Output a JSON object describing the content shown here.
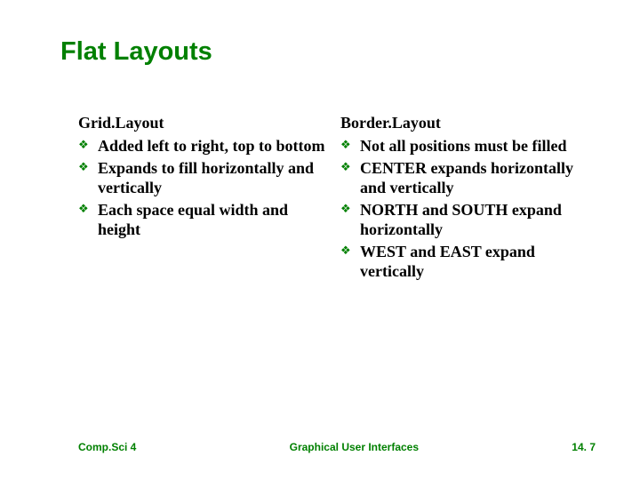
{
  "colors": {
    "title": "#008000",
    "body_text": "#000000",
    "footer_text": "#008000",
    "bullet_icon": "#008000",
    "background": "#ffffff"
  },
  "fonts": {
    "title_family": "Arial, Helvetica, sans-serif",
    "body_family": "Georgia, 'Times New Roman', serif",
    "title_size_pt": 22,
    "heading_size_pt": 14,
    "body_size_pt": 14,
    "footer_size_pt": 9
  },
  "title": "Flat Layouts",
  "left": {
    "heading": "Grid.Layout",
    "items": [
      "Added left to right, top to bottom",
      "Expands to fill horizontally and vertically",
      "Each space equal width and height"
    ]
  },
  "right": {
    "heading": "Border.Layout",
    "items": [
      "Not all positions must be filled",
      "CENTER expands horizontally and vertically",
      "NORTH and SOUTH expand horizontally",
      "WEST and EAST expand vertically"
    ]
  },
  "footer": {
    "left": "Comp.Sci 4",
    "center": "Graphical User Interfaces",
    "right": "14. 7"
  },
  "bullet_glyph": "❖"
}
